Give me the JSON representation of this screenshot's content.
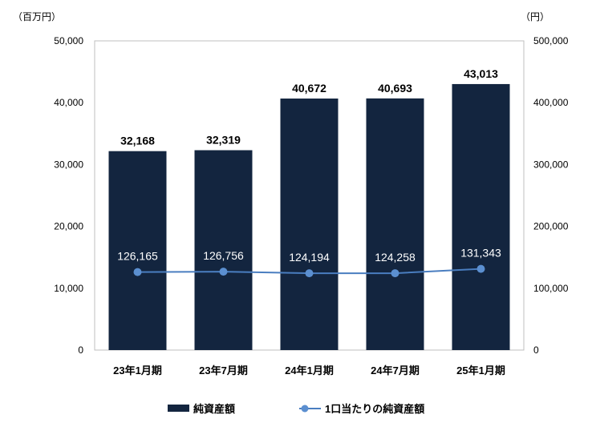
{
  "chart_data": {
    "type": "bar+line",
    "categories": [
      "23年1月期",
      "23年7月期",
      "24年1月期",
      "24年7月期",
      "25年1月期"
    ],
    "series": [
      {
        "name": "純資産額",
        "type": "bar",
        "axis": "left",
        "values": [
          32168,
          32319,
          40672,
          40693,
          43013
        ],
        "labels": [
          "32,168",
          "32,319",
          "40,672",
          "40,693",
          "43,013"
        ]
      },
      {
        "name": "1口当たりの純資産額",
        "type": "line",
        "axis": "right",
        "values": [
          126165,
          126756,
          124194,
          124258,
          131343
        ],
        "labels": [
          "126,165",
          "126,756",
          "124,194",
          "124,258",
          "131,343"
        ]
      }
    ],
    "y_left": {
      "unit": "（百万円）",
      "ylim": [
        0,
        50000
      ],
      "ticks": [
        "0",
        "10,000",
        "20,000",
        "30,000",
        "40,000",
        "50,000"
      ]
    },
    "y_right": {
      "unit": "（円）",
      "ylim": [
        0,
        500000
      ],
      "ticks": [
        "0",
        "100,000",
        "200,000",
        "300,000",
        "400,000",
        "500,000"
      ]
    },
    "grid": false,
    "legend_position": "bottom",
    "colors": {
      "bar": "#13253F",
      "line": "#4A7EC0",
      "marker": "#5B8FD0"
    }
  }
}
